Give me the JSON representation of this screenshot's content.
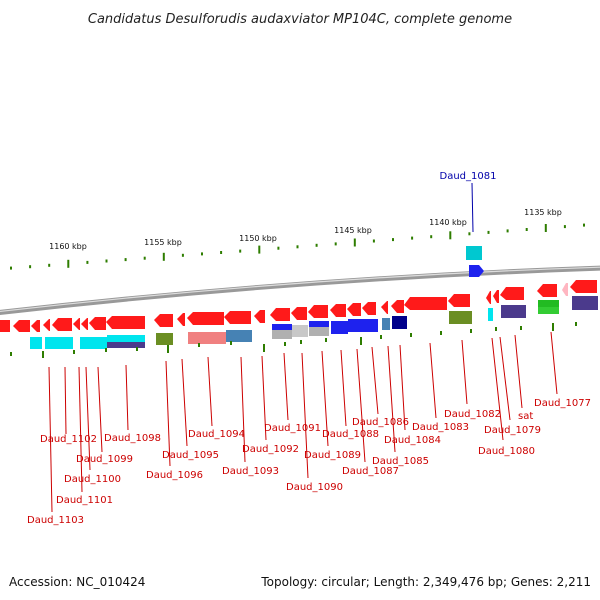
{
  "title": "Candidatus Desulforudis audaxviator MP104C, complete genome",
  "footer": {
    "accession": "Accession: NC_010424",
    "summary": "Topology: circular; Length: 2,349,476 bp; Genes: 2,211"
  },
  "scale": {
    "ticks": [
      "1160 kbp",
      "1155 kbp",
      "1150 kbp",
      "1145 kbp",
      "1140 kbp",
      "1135 kbp"
    ]
  },
  "colors": {
    "cds": "#ff0000",
    "highlight": "#0000aa",
    "label": "#cc0000",
    "backbone": "#888888",
    "tick": "#2e7d00"
  },
  "genes_labeled": [
    "Daud_1103",
    "Daud_1102",
    "Daud_1101",
    "Daud_1100",
    "Daud_1099",
    "Daud_1098",
    "Daud_1096",
    "Daud_1095",
    "Daud_1094",
    "Daud_1093",
    "Daud_1092",
    "Daud_1091",
    "Daud_1090",
    "Daud_1089",
    "Daud_1088",
    "Daud_1087",
    "Daud_1086",
    "Daud_1085",
    "Daud_1084",
    "Daud_1083",
    "Daud_1082",
    "Daud_1081",
    "Daud_1080",
    "Daud_1079",
    "sat",
    "Daud_1077"
  ]
}
